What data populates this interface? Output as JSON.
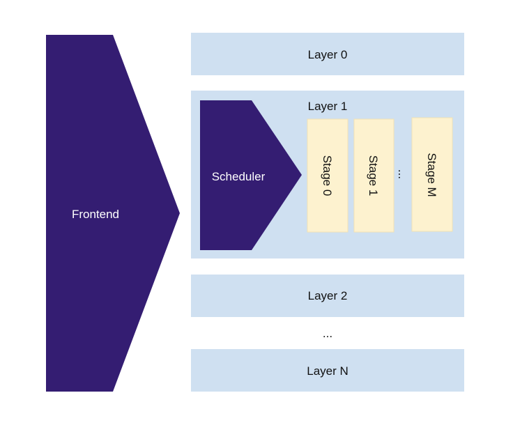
{
  "colors": {
    "frontend": "#341d72",
    "layer_fill": "#cfe0f1",
    "stage_fill": "#fdf2cf",
    "stage_stroke": "#f2e2b4"
  },
  "frontend": {
    "label": "Frontend"
  },
  "scheduler": {
    "label": "Scheduler"
  },
  "layers": [
    {
      "label": "Layer 0"
    },
    {
      "label": "Layer 1"
    },
    {
      "label": "Layer 2"
    },
    {
      "label": "Layer N"
    }
  ],
  "layer_ellipsis": "...",
  "stages": [
    {
      "label": "Stage 0"
    },
    {
      "label": "Stage 1"
    },
    {
      "label": "Stage M"
    }
  ],
  "stage_ellipsis": "..."
}
